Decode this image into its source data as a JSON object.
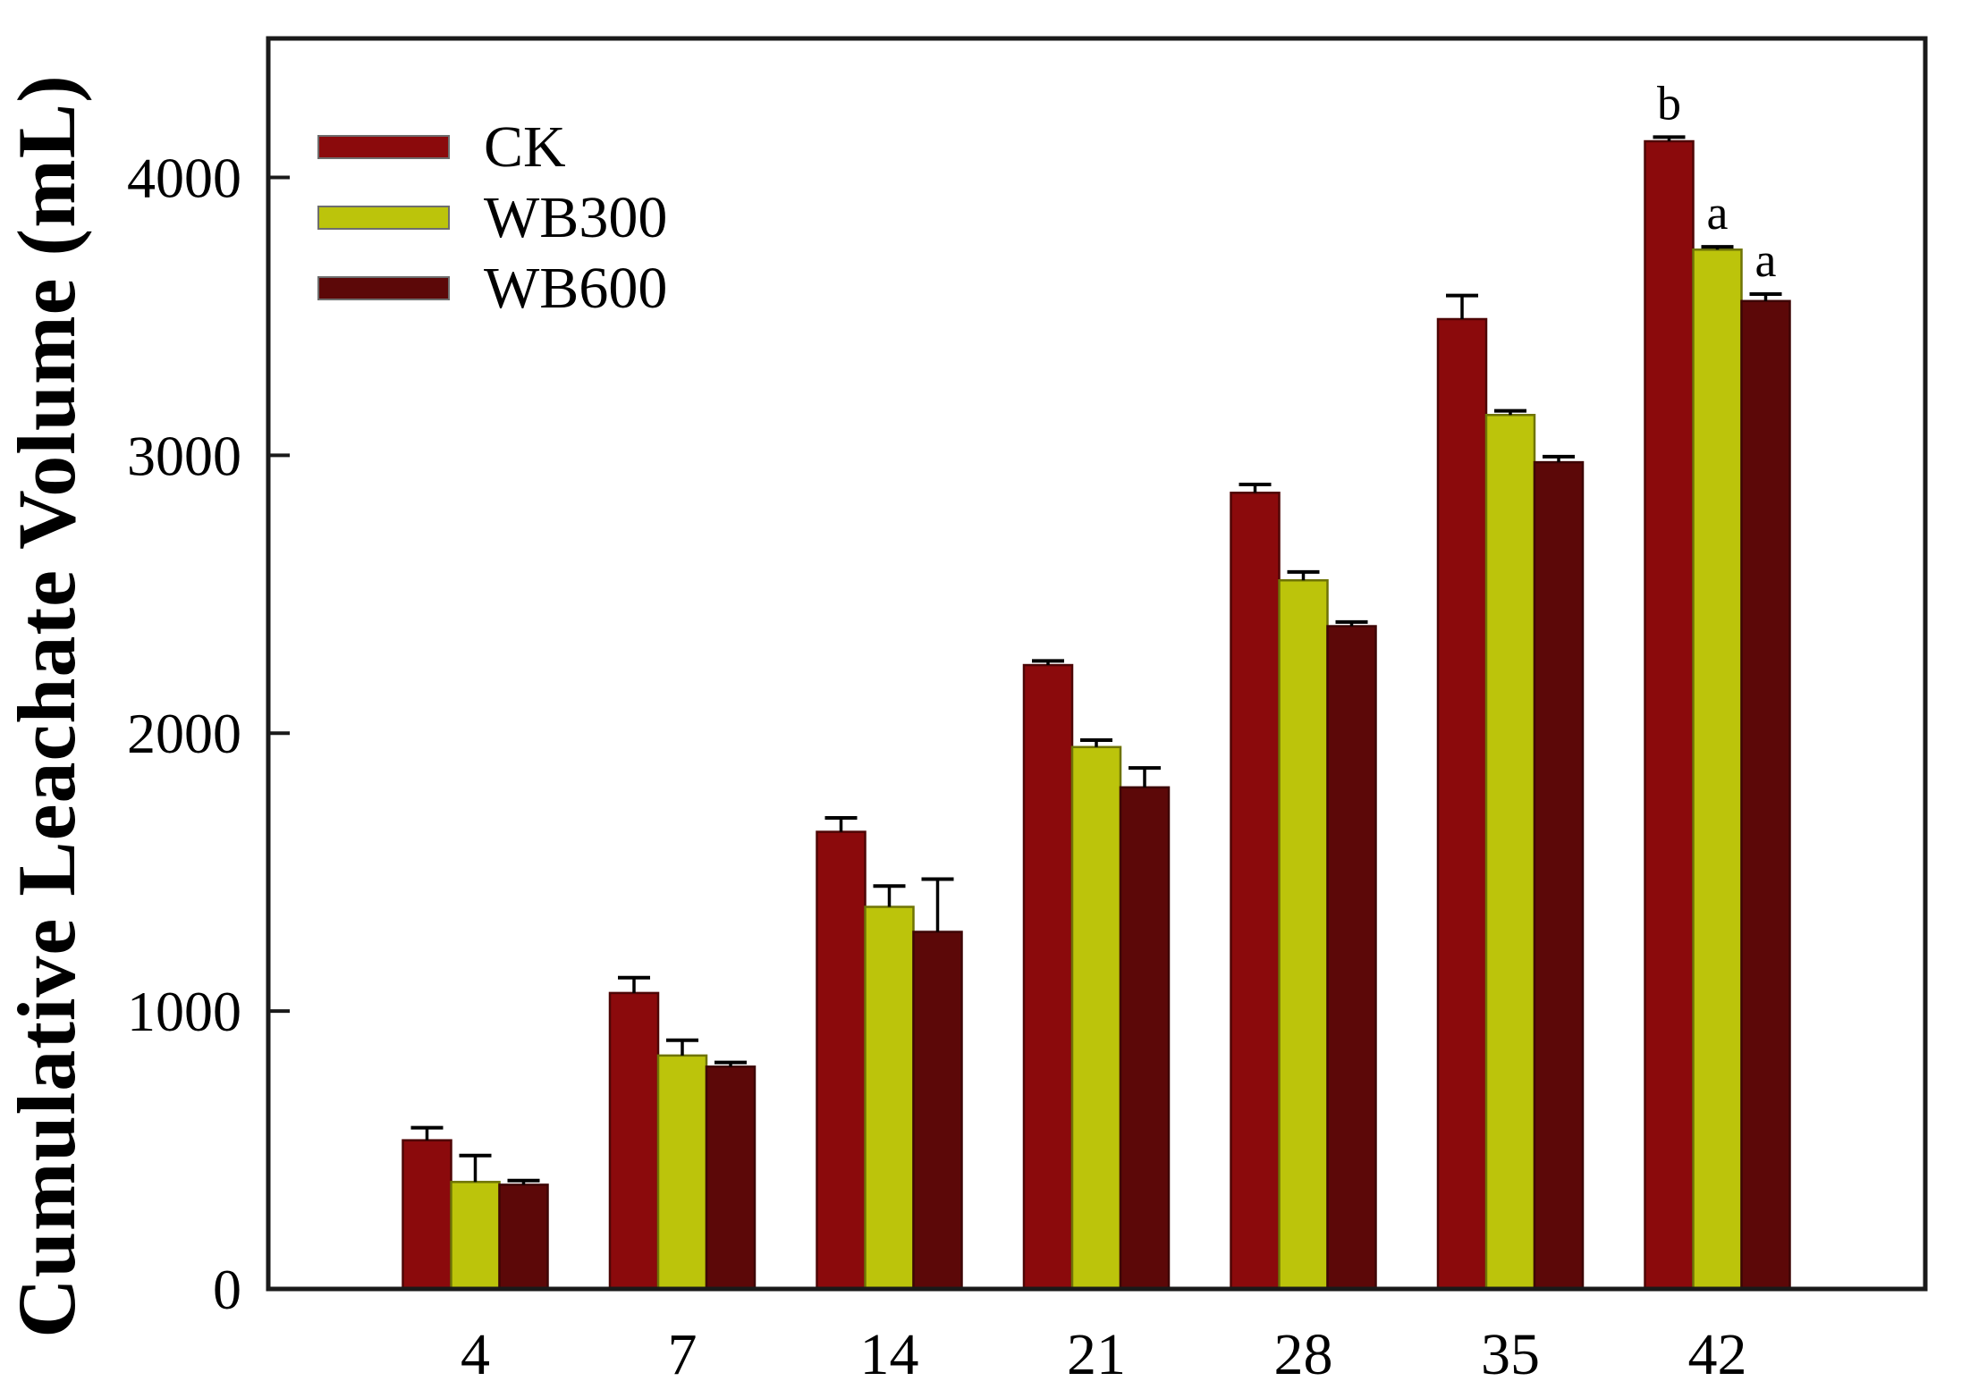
{
  "chart_data": {
    "type": "bar",
    "title": "",
    "xlabel": "",
    "ylabel": "Cumulative Leachate Volume (mL)",
    "categories": [
      "4",
      "7",
      "14",
      "21",
      "28",
      "35",
      "42"
    ],
    "series": [
      {
        "name": "CK",
        "color": "#8B0A0C",
        "edge_color": "#4e0606",
        "values": [
          535,
          1065,
          1645,
          2245,
          2865,
          3490,
          4130
        ],
        "errors": [
          45,
          55,
          50,
          15,
          30,
          85,
          15
        ]
      },
      {
        "name": "WB300",
        "color": "#BCC40B",
        "edge_color": "#6f7406",
        "values": [
          385,
          840,
          1375,
          1950,
          2550,
          3145,
          3740
        ],
        "errors": [
          95,
          55,
          75,
          25,
          30,
          15,
          10
        ]
      },
      {
        "name": "WB600",
        "color": "#5C0808",
        "edge_color": "#3d0505",
        "values": [
          375,
          800,
          1285,
          1805,
          2385,
          2975,
          3555
        ],
        "errors": [
          15,
          15,
          190,
          70,
          15,
          20,
          25
        ]
      }
    ],
    "yticks": [
      0,
      1000,
      2000,
      3000,
      4000
    ],
    "ylim": [
      0,
      4500
    ],
    "grid": false,
    "legend_position": "top-left-inside",
    "error_bar_color": "#000000",
    "axis_color": "#1a1a1a",
    "annotations": [
      {
        "category": "42",
        "letters": [
          "b",
          "a",
          "a"
        ]
      }
    ]
  }
}
